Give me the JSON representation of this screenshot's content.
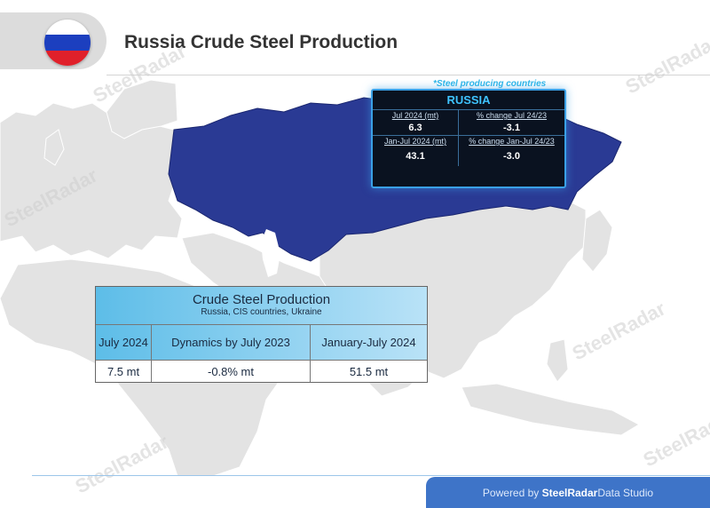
{
  "header": {
    "title": "Russia Crude Steel Production"
  },
  "flag": {
    "colors": [
      "#ffffff",
      "#1c3fbf",
      "#e0202a"
    ]
  },
  "map": {
    "highlight_color": "#2a3a94",
    "land_color": "#e3e3e3",
    "sea_color": "#ffffff",
    "highlighted_country": "Russia"
  },
  "russia_box": {
    "note": "*Steel producing countries",
    "title": "RUSSIA",
    "cells": [
      {
        "label": "Jul 2024 (mt)",
        "value": "6.3"
      },
      {
        "label": "% change Jul 24/23",
        "value": "-3.1"
      },
      {
        "label": "Jan-Jul 2024 (mt)",
        "value": "43.1"
      },
      {
        "label": "% change Jan-Jul 24/23",
        "value": "-3.0"
      }
    ]
  },
  "production_table": {
    "title": "Crude Steel Production",
    "subtitle": "Russia, CIS countries, Ukraine",
    "columns": [
      "July 2024",
      "Dynamics by July 2023",
      "January-July 2024"
    ],
    "values": [
      "7.5 mt",
      "-0.8% mt",
      "51.5 mt"
    ]
  },
  "watermark": "SteelRadar",
  "footer": {
    "prefix": "Powered by ",
    "brand": "SteelRadar",
    "suffix": "Data Studio"
  }
}
